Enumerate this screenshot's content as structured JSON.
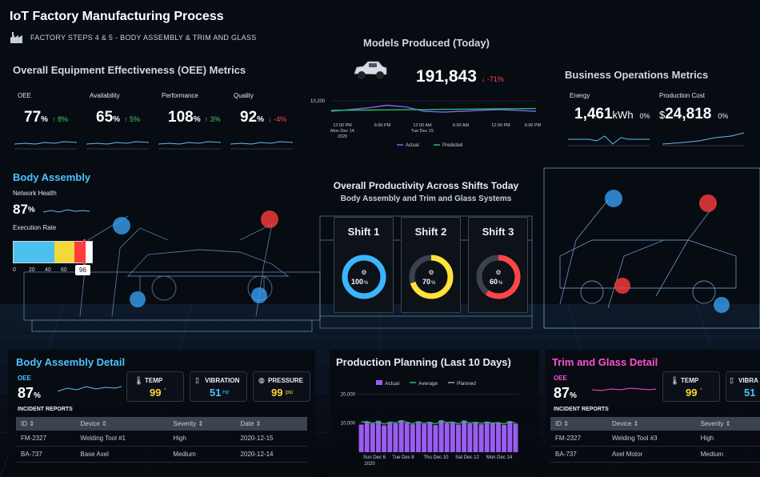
{
  "header": {
    "title": "IoT Factory Manufacturing Process",
    "subtitle": "FACTORY STEPS 4 & 5 - BODY ASSEMBLY & TRIM AND GLASS"
  },
  "oee": {
    "title": "Overall Equipment Effectiveness (OEE) Metrics",
    "metrics": [
      {
        "label": "OEE",
        "value": "77",
        "unit": "%",
        "delta": "↑ 8%",
        "dir": "up"
      },
      {
        "label": "Availability",
        "value": "65",
        "unit": "%",
        "delta": "↑ 5%",
        "dir": "up"
      },
      {
        "label": "Performance",
        "value": "108",
        "unit": "%",
        "delta": "↑ 3%",
        "dir": "up"
      },
      {
        "label": "Quality",
        "value": "92",
        "unit": "%",
        "delta": "↓ -4%",
        "dir": "down"
      }
    ]
  },
  "models": {
    "title": "Models Produced (Today)",
    "value": "191,843",
    "delta": "↓ -71%",
    "chart_data": {
      "type": "line",
      "y_tick": "10,200",
      "x_ticks": [
        {
          "line1": "12:00 PM",
          "line2": "Mon Dec 14",
          "line3": "2020"
        },
        {
          "line1": "6:00 PM",
          "line2": "",
          "line3": ""
        },
        {
          "line1": "12:00 AM",
          "line2": "Tue Dec 15",
          "line3": ""
        },
        {
          "line1": "6:00 AM",
          "line2": "",
          "line3": ""
        },
        {
          "line1": "12:00 PM",
          "line2": "",
          "line3": ""
        },
        {
          "line1": "6:00 PM",
          "line2": "",
          "line3": ""
        }
      ],
      "legend": [
        "Actual",
        "Predicted"
      ],
      "series": [
        {
          "name": "Actual",
          "color": "#8b5cf6",
          "values": [
            9700,
            9800,
            9900,
            10050,
            9950,
            9700,
            9650,
            9700,
            9750,
            9800,
            9750,
            9700
          ]
        },
        {
          "name": "Predicted",
          "color": "#22c55e",
          "values": [
            9750,
            9760,
            9770,
            9780,
            9790,
            9800,
            9810,
            9820,
            9830,
            9840,
            9850,
            9860
          ]
        }
      ],
      "ylim": [
        9000,
        10400
      ]
    }
  },
  "business": {
    "title": "Business Operations Metrics",
    "energy": {
      "label": "Energy",
      "value": "1,461",
      "unit": "kWh",
      "delta": "0%"
    },
    "cost": {
      "label": "Production Cost",
      "prefix": "$",
      "value": "24,818",
      "delta": "0%"
    }
  },
  "body_assembly": {
    "title": "Body Assembly",
    "network_label": "Network Health",
    "network_value": "87",
    "network_unit": "%",
    "exec_label": "Execution Rate",
    "exec_value": "96",
    "exec_ticks": [
      "0",
      "20",
      "40",
      "60",
      "80"
    ]
  },
  "productivity": {
    "title": "Overall Productivity Across Shifts Today",
    "subtitle": "Body Assembly and Trim and Glass Systems",
    "shifts": [
      {
        "name": "Shift 1",
        "value": "100",
        "unit": "%",
        "pct": 100,
        "color": "#3ab6ff"
      },
      {
        "name": "Shift 2",
        "value": "70",
        "unit": "%",
        "pct": 70,
        "color": "#ffe23a"
      },
      {
        "name": "Shift 3",
        "value": "60",
        "unit": "%",
        "pct": 60,
        "color": "#ff4646"
      }
    ]
  },
  "ba_detail": {
    "title": "Body Assembly Detail",
    "oee_label": "OEE",
    "oee_value": "87",
    "oee_unit": "%",
    "temp": {
      "label": "TEMP",
      "value": "99",
      "unit": "°"
    },
    "vibration": {
      "label": "VIBRATION",
      "value": "51",
      "unit": "Hz"
    },
    "pressure": {
      "label": "PRESSURE",
      "value": "99",
      "unit": "psi"
    },
    "incidents_label": "INCIDENT REPORTS",
    "columns": [
      "ID ⇕",
      "Device ⇕",
      "Severity ⇕",
      "Date ⇕"
    ],
    "rows": [
      [
        "FM-2327",
        "Welding Tool #1",
        "High",
        "2020-12-15"
      ],
      [
        "BA-737",
        "Base Axel",
        "Medium",
        "2020-12-14"
      ]
    ]
  },
  "planning": {
    "title": "Production Planning (Last 10 Days)",
    "chart_data": {
      "type": "bar",
      "legend": [
        "Actual",
        "Average",
        "Planned"
      ],
      "y_ticks": [
        "20,000",
        "10,000"
      ],
      "x_ticks": [
        {
          "line1": "Sun Dec 6",
          "line2": "2020"
        },
        {
          "line1": "Tue Dec 8",
          "line2": ""
        },
        {
          "line1": "Thu Dec 10",
          "line2": ""
        },
        {
          "line1": "Sat Dec 12",
          "line2": ""
        },
        {
          "line1": "Mon Dec 14",
          "line2": ""
        }
      ],
      "values": [
        9500,
        10500,
        9800,
        10800,
        9200,
        10200,
        9900,
        11000,
        10100,
        9600,
        10600,
        9700,
        10400,
        9300,
        11000,
        10000,
        10300,
        9500,
        10900,
        9800,
        10200,
        9600,
        10500,
        9900,
        10100,
        9400,
        10700,
        9800
      ],
      "average": [
        10300,
        10600,
        9900,
        10500,
        9600,
        10400,
        10100,
        10800,
        10300,
        9800,
        10500,
        9900,
        10300,
        9700,
        10700,
        10200,
        10400,
        9800,
        10600,
        10000,
        10300,
        9900,
        10400,
        10000,
        10200,
        9700,
        10500,
        10000
      ],
      "ylim": [
        0,
        22000
      ]
    }
  },
  "tg_detail": {
    "title": "Trim and Glass Detail",
    "oee_label": "OEE",
    "oee_value": "87",
    "oee_unit": "%",
    "temp": {
      "label": "TEMP",
      "value": "99",
      "unit": "°"
    },
    "vibration": {
      "label": "VIBRA",
      "value": "51",
      "unit": ""
    },
    "incidents_label": "INCIDENT REPORTS",
    "columns": [
      "ID ⇕",
      "Device ⇕",
      "Severity ⇕"
    ],
    "rows": [
      [
        "FM-2327",
        "Welding Tool #3",
        "High"
      ],
      [
        "BA-737",
        "Axel Motor",
        "Medium"
      ]
    ]
  }
}
